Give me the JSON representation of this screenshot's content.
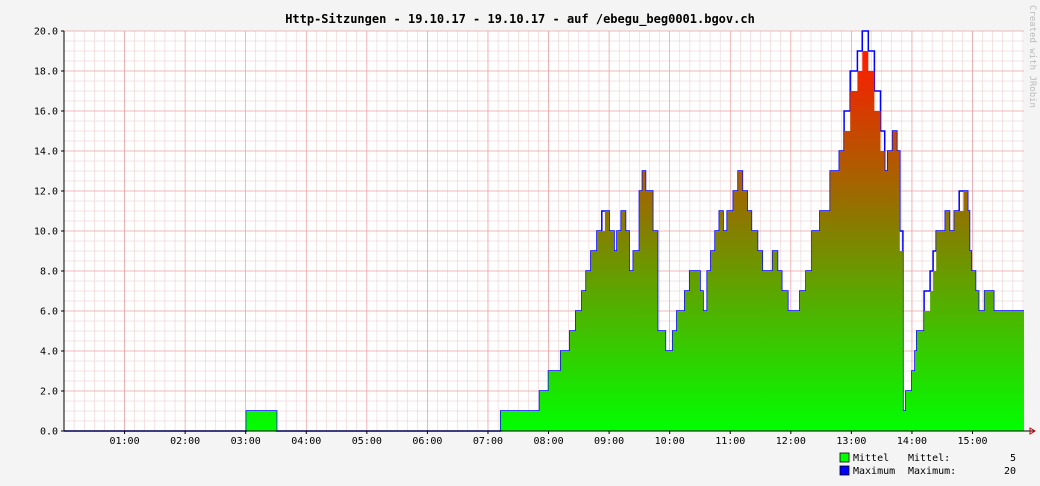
{
  "chart_data": {
    "type": "area",
    "title": "Http-Sitzungen - 19.10.17 - 19.10.17 - auf /ebegu_beg0001.bgov.ch",
    "xlabel": "",
    "ylabel": "",
    "ylim": [
      0,
      20
    ],
    "xlim_hours": [
      0.0,
      15.85
    ],
    "y_ticks": [
      "0.0",
      "2.0",
      "4.0",
      "6.0",
      "8.0",
      "10.0",
      "12.0",
      "14.0",
      "16.0",
      "18.0",
      "20.0"
    ],
    "x_ticks": [
      "01:00",
      "02:00",
      "03:00",
      "04:00",
      "05:00",
      "06:00",
      "07:00",
      "08:00",
      "09:00",
      "10:00",
      "11:00",
      "12:00",
      "13:00",
      "14:00",
      "15:00"
    ],
    "grid": true,
    "legend_position": "bottom-right",
    "x_hours": [
      0.0,
      3.0,
      3.01,
      3.5,
      3.51,
      7.2,
      7.21,
      7.7,
      7.71,
      7.85,
      8.0,
      8.2,
      8.35,
      8.45,
      8.55,
      8.62,
      8.7,
      8.8,
      8.88,
      8.93,
      9.0,
      9.08,
      9.13,
      9.2,
      9.27,
      9.33,
      9.4,
      9.5,
      9.55,
      9.6,
      9.72,
      9.8,
      9.93,
      10.05,
      10.12,
      10.25,
      10.33,
      10.5,
      10.55,
      10.62,
      10.68,
      10.75,
      10.82,
      10.88,
      10.95,
      11.05,
      11.13,
      11.2,
      11.28,
      11.35,
      11.45,
      11.53,
      11.6,
      11.7,
      11.78,
      11.85,
      11.95,
      12.05,
      12.15,
      12.25,
      12.35,
      12.48,
      12.65,
      12.8,
      12.88,
      12.98,
      13.1,
      13.18,
      13.28,
      13.38,
      13.48,
      13.55,
      13.6,
      13.68,
      13.75,
      13.8,
      13.85,
      13.9,
      14.0,
      14.05,
      14.08,
      14.2,
      14.3,
      14.35,
      14.4,
      14.48,
      14.55,
      14.62,
      14.7,
      14.78,
      14.85,
      14.92,
      14.95,
      14.98,
      15.05,
      15.1,
      15.15,
      15.2,
      15.28,
      15.35,
      15.42,
      15.5,
      15.6,
      15.7,
      15.75,
      15.78,
      15.85
    ],
    "series": [
      {
        "name": "Mittel",
        "color": "#00ff00",
        "values": [
          0,
          0,
          1,
          1,
          0,
          0,
          1,
          1,
          1,
          2,
          3,
          4,
          5,
          6,
          7,
          8,
          9,
          10,
          10,
          11,
          10,
          9,
          10,
          11,
          10,
          8,
          9,
          12,
          13,
          12,
          10,
          5,
          4,
          5,
          6,
          7,
          8,
          7,
          6,
          8,
          9,
          10,
          11,
          10,
          11,
          12,
          13,
          12,
          11,
          10,
          9,
          8,
          8,
          9,
          8,
          7,
          6,
          6,
          7,
          8,
          10,
          11,
          13,
          14,
          15,
          17,
          18,
          19,
          18,
          16,
          14,
          13,
          14,
          15,
          14,
          9,
          1,
          2,
          3,
          4,
          5,
          6,
          7,
          8,
          10,
          10,
          11,
          10,
          11,
          11,
          12,
          11,
          9,
          8,
          7,
          6,
          6,
          7,
          7,
          6,
          6,
          6,
          6,
          6,
          6,
          6,
          6
        ]
      },
      {
        "name": "Maximum",
        "color": "#0000ff",
        "values": [
          0,
          0,
          1,
          1,
          0,
          0,
          1,
          1,
          1,
          2,
          3,
          4,
          5,
          6,
          7,
          8,
          9,
          10,
          11,
          11,
          10,
          9,
          10,
          11,
          10,
          8,
          9,
          12,
          13,
          12,
          10,
          5,
          4,
          5,
          6,
          7,
          8,
          7,
          6,
          8,
          9,
          10,
          11,
          10,
          11,
          12,
          13,
          12,
          11,
          10,
          9,
          8,
          8,
          9,
          8,
          7,
          6,
          6,
          7,
          8,
          10,
          11,
          13,
          14,
          16,
          18,
          19,
          20,
          19,
          17,
          15,
          13,
          14,
          15,
          14,
          10,
          1,
          2,
          3,
          4,
          5,
          7,
          8,
          9,
          10,
          10,
          11,
          10,
          11,
          12,
          12,
          11,
          9,
          8,
          7,
          6,
          6,
          7,
          7,
          6,
          6,
          6,
          6,
          6,
          6,
          6,
          6
        ]
      }
    ]
  },
  "side_text": "Created with JRobin",
  "legend": [
    {
      "swatch_color": "#00ff00",
      "label": "Mittel",
      "stat_label": "Mittel:",
      "stat_value": "5"
    },
    {
      "swatch_color": "#0000ff",
      "label": "Maximum",
      "stat_label": "Maximum:",
      "stat_value": "20"
    }
  ]
}
